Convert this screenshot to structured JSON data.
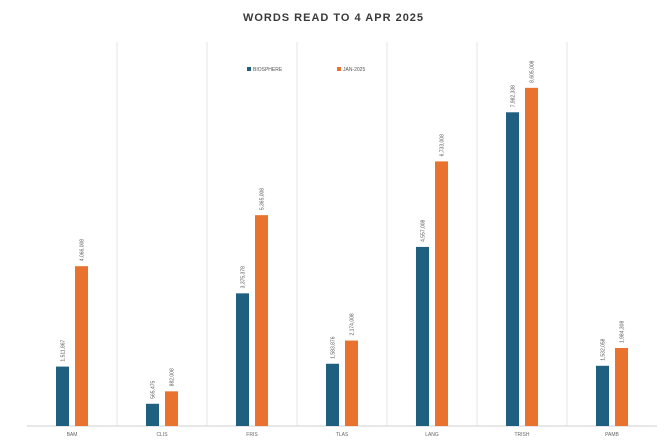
{
  "chart_data": {
    "type": "bar",
    "title": "WORDS READ TO 4 APR 2025",
    "xlabel": "",
    "ylabel": "",
    "categories": [
      "BAM",
      "CLIS",
      "FRIS",
      "TLAS",
      "LANG",
      "TRISH",
      "PAMB"
    ],
    "series": [
      {
        "name": "BIOSPHERE",
        "color": "#1f5f7f",
        "values": [
          1511867,
          565475,
          3375378,
          1583876,
          4557008,
          7982338,
          1532058
        ],
        "labels": [
          "1,511,867",
          "565,475",
          "3,375,378",
          "1,583,876",
          "4,557,008",
          "7,982,338",
          "1,532,058"
        ]
      },
      {
        "name": "JAN-2025",
        "color": "#e8722e",
        "values": [
          4066008,
          882008,
          5365008,
          2174008,
          6733008,
          8605008,
          1984308
        ],
        "labels": [
          "4,066,008",
          "882,008",
          "5,365,008",
          "2,174,008",
          "6,733,008",
          "8,605,008",
          "1,984,308"
        ]
      }
    ],
    "ylim": [
      0,
      10000000
    ],
    "grid": false,
    "legend_position": "top"
  }
}
